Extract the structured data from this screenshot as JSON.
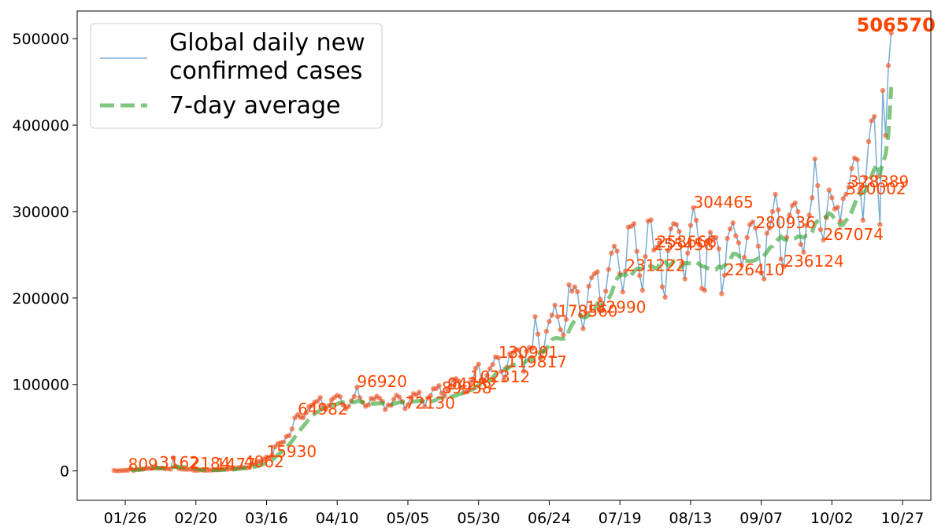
{
  "chart_data": {
    "type": "line",
    "x": [
      "01/22",
      "01/23",
      "01/24",
      "01/25",
      "01/26",
      "01/27",
      "01/28",
      "01/29",
      "01/30",
      "01/31",
      "02/01",
      "02/02",
      "02/03",
      "02/04",
      "02/05",
      "02/06",
      "02/07",
      "02/08",
      "02/09",
      "02/10",
      "02/11",
      "02/12",
      "02/13",
      "02/14",
      "02/15",
      "02/16",
      "02/17",
      "02/18",
      "02/19",
      "02/20",
      "02/21",
      "02/22",
      "02/23",
      "02/24",
      "02/25",
      "02/26",
      "02/27",
      "02/28",
      "02/29",
      "03/01",
      "03/02",
      "03/03",
      "03/04",
      "03/05",
      "03/06",
      "03/07",
      "03/08",
      "03/09",
      "03/10",
      "03/11",
      "03/12",
      "03/13",
      "03/14",
      "03/15",
      "03/16",
      "03/17",
      "03/18",
      "03/19",
      "03/20",
      "03/21",
      "03/22",
      "03/23",
      "03/24",
      "03/25",
      "03/26",
      "03/27",
      "03/28",
      "03/29",
      "03/30",
      "03/31",
      "04/01",
      "04/02",
      "04/03",
      "04/04",
      "04/05",
      "04/06",
      "04/07",
      "04/08",
      "04/09",
      "04/10",
      "04/11",
      "04/12",
      "04/13",
      "04/14",
      "04/15",
      "04/16",
      "04/17",
      "04/18",
      "04/19",
      "04/20",
      "04/21",
      "04/22",
      "04/23",
      "04/24",
      "04/25",
      "04/26",
      "04/27",
      "04/28",
      "04/29",
      "04/30",
      "05/01",
      "05/02",
      "05/03",
      "05/04",
      "05/05",
      "05/06",
      "05/07",
      "05/08",
      "05/09",
      "05/10",
      "05/11",
      "05/12",
      "05/13",
      "05/14",
      "05/15",
      "05/16",
      "05/17",
      "05/18",
      "05/19",
      "05/20",
      "05/21",
      "05/22",
      "05/23",
      "05/24",
      "05/25",
      "05/26",
      "05/27",
      "05/28",
      "05/29",
      "05/30",
      "05/31",
      "06/01",
      "06/02",
      "06/03",
      "06/04",
      "06/05",
      "06/06",
      "06/07",
      "06/08",
      "06/09",
      "06/10",
      "06/11",
      "06/12",
      "06/13",
      "06/14",
      "06/15",
      "06/16",
      "06/17",
      "06/18",
      "06/19",
      "06/20",
      "06/21",
      "06/22",
      "06/23",
      "06/24",
      "06/25",
      "06/26",
      "06/27",
      "06/28",
      "06/29",
      "06/30",
      "07/01",
      "07/02",
      "07/03",
      "07/04",
      "07/05",
      "07/06",
      "07/07",
      "07/08",
      "07/09",
      "07/10",
      "07/11",
      "07/12",
      "07/13",
      "07/14",
      "07/15",
      "07/16",
      "07/17",
      "07/18",
      "07/19",
      "07/20",
      "07/21",
      "07/22",
      "07/23",
      "07/24",
      "07/25",
      "07/26",
      "07/27",
      "07/28",
      "07/29",
      "07/30",
      "07/31",
      "08/01",
      "08/02",
      "08/03",
      "08/04",
      "08/05",
      "08/06",
      "08/07",
      "08/08",
      "08/09",
      "08/10",
      "08/11",
      "08/12",
      "08/13",
      "08/14",
      "08/15",
      "08/16",
      "08/17",
      "08/18",
      "08/19",
      "08/20",
      "08/21",
      "08/22",
      "08/23",
      "08/24",
      "08/25",
      "08/26",
      "08/27",
      "08/28",
      "08/29",
      "08/30",
      "08/31",
      "09/01",
      "09/02",
      "09/03",
      "09/04",
      "09/05",
      "09/06",
      "09/07",
      "09/08",
      "09/09",
      "09/10",
      "09/11",
      "09/12",
      "09/13",
      "09/14",
      "09/15",
      "09/16",
      "09/17",
      "09/18",
      "09/19",
      "09/20",
      "09/21",
      "09/22",
      "09/23",
      "09/24",
      "09/25",
      "09/26",
      "09/27",
      "09/28",
      "09/29",
      "09/30",
      "10/01",
      "10/02",
      "10/03",
      "10/04",
      "10/05",
      "10/06",
      "10/07",
      "10/08",
      "10/09",
      "10/10",
      "10/11",
      "10/12",
      "10/13",
      "10/14",
      "10/15",
      "10/16",
      "10/17",
      "10/18",
      "10/19",
      "10/20",
      "10/21",
      "10/22",
      "10/23"
    ],
    "series": [
      {
        "name": "Global daily new\nconfirmed cases",
        "color": "#1f77b4",
        "marker_color": "#f4511e",
        "values": [
          548,
          100,
          287,
          493,
          684,
          809,
          2651,
          588,
          2068,
          1693,
          2111,
          2604,
          2829,
          3237,
          3872,
          3727,
          3162,
          3418,
          2608,
          2545,
          2020,
          15153,
          5087,
          2653,
          2110,
          2052,
          1886,
          2184,
          908,
          574,
          971,
          1222,
          611,
          826,
          919,
          1024,
          1477,
          1426,
          1929,
          2390,
          1853,
          2534,
          2314,
          2787,
          3977,
          3957,
          4062,
          3713,
          4451,
          7505,
          8008,
          10855,
          11120,
          13781,
          15930,
          14952,
          18108,
          27990,
          31400,
          32500,
          33400,
          39800,
          40800,
          48500,
          61500,
          64982,
          62000,
          61700,
          67100,
          74500,
          76000,
          79400,
          80700,
          85000,
          74800,
          71500,
          75500,
          82200,
          84900,
          87400,
          85900,
          76400,
          71800,
          74600,
          81200,
          86100,
          96920,
          84700,
          79300,
          74800,
          76500,
          83900,
          83000,
          86400,
          84000,
          80500,
          71000,
          76300,
          75900,
          83000,
          87500,
          85200,
          80400,
          72130,
          76700,
          85100,
          89300,
          88000,
          91000,
          80800,
          74500,
          84500,
          87100,
          95100,
          95300,
          98600,
          89958,
          86600,
          94282,
          98000,
          105200,
          106800,
          103800,
          96200,
          90800,
          91600,
          102312,
          106400,
          118900,
          123600,
          104600,
          103500,
          110500,
          118300,
          123100,
          132000,
          130901,
          115000,
          106300,
          119817,
          135600,
          136600,
          139400,
          140200,
          132400,
          115300,
          138300,
          142700,
          141900,
          178500,
          158300,
          130800,
          138300,
          161500,
          172800,
          180200,
          191700,
          178560,
          163400,
          157300,
          175400,
          215300,
          207900,
          212900,
          207400,
          179700,
          164500,
          182990,
          213700,
          223600,
          228000,
          230400,
          198700,
          186000,
          208000,
          233100,
          252000,
          260000,
          254400,
          228000,
          207000,
          231222,
          282000,
          283000,
          286000,
          254000,
          226000,
          209000,
          248000,
          289000,
          290500,
          255458,
          258666,
          264000,
          213000,
          201000,
          255000,
          280000,
          286000,
          285000,
          277000,
          240000,
          222000,
          252000,
          284000,
          304465,
          290000,
          262000,
          211000,
          209000,
          266000,
          276000,
          268000,
          270000,
          257000,
          205000,
          226410,
          269000,
          280000,
          287000,
          272000,
          264000,
          238000,
          247000,
          270000,
          285000,
          288000,
          280936,
          260000,
          229000,
          222000,
          275000,
          281000,
          300000,
          320000,
          302000,
          245000,
          236124,
          270000,
          296000,
          307000,
          310000,
          300000,
          262000,
          253000,
          284000,
          296000,
          316000,
          361000,
          330000,
          279000,
          267074,
          293000,
          325000,
          316000,
          303000,
          305000,
          289000,
          315000,
          320002,
          328389,
          350000,
          362000,
          360000,
          326000,
          290000,
          339000,
          381000,
          405000,
          410000,
          340000,
          285000,
          440000,
          388000,
          469000,
          506570
        ]
      },
      {
        "name": "7-day average",
        "color": "#2ca02c",
        "dashed": true,
        "values": [
          null,
          null,
          null,
          null,
          null,
          null,
          800,
          1100,
          1200,
          1400,
          1700,
          2000,
          2300,
          2600,
          2900,
          3100,
          3200,
          3200,
          3100,
          3000,
          2800,
          4500,
          4800,
          4700,
          4600,
          4500,
          4300,
          4100,
          3600,
          3100,
          1700,
          1300,
          1200,
          1100,
          1000,
          900,
          950,
          1000,
          1100,
          1200,
          1300,
          1500,
          1700,
          1900,
          2200,
          2700,
          3000,
          3300,
          3600,
          4200,
          4800,
          5800,
          6800,
          8000,
          9300,
          10700,
          12400,
          15500,
          18500,
          21300,
          23900,
          27400,
          30500,
          34500,
          39100,
          43600,
          47800,
          51800,
          55600,
          59700,
          63800,
          66100,
          68000,
          70200,
          71800,
          73200,
          74500,
          75400,
          76200,
          77400,
          78900,
          79500,
          79100,
          78800,
          79700,
          79200,
          80800,
          80500,
          79500,
          78600,
          78100,
          77900,
          77600,
          78000,
          78300,
          78000,
          77200,
          76200,
          76700,
          77700,
          78500,
          79300,
          79200,
          78700,
          78500,
          79000,
          80500,
          80700,
          81200,
          80400,
          80200,
          80100,
          80000,
          81000,
          82400,
          84500,
          84200,
          83000,
          84200,
          85700,
          86600,
          87000,
          88700,
          89500,
          91000,
          92000,
          93300,
          94500,
          96700,
          99500,
          100400,
          101100,
          102400,
          104700,
          108000,
          112100,
          115600,
          117500,
          117800,
          118000,
          120400,
          122200,
          123300,
          124300,
          124600,
          124600,
          127500,
          129000,
          128300,
          134400,
          135700,
          138000,
          138500,
          141600,
          145400,
          151700,
          153700,
          153800,
          152800,
          152900,
          153800,
          162400,
          168900,
          173800,
          178000,
          180500,
          177600,
          177700,
          180300,
          182500,
          186000,
          193300,
          191400,
          192000,
          195200,
          199200,
          205400,
          215300,
          222600,
          226100,
          227200,
          227200,
          223100,
          226400,
          230800,
          233900,
          233900,
          234200,
          234000,
          236100,
          237100,
          235400,
          233800,
          238800,
          242300,
          242300,
          237600,
          238400,
          242000,
          236400,
          235600,
          236000,
          240300,
          240400,
          240000,
          239500,
          241300,
          239300,
          236700,
          236300,
          234400,
          233700,
          233500,
          233000,
          236400,
          235200,
          238000,
          240000,
          244000,
          251000,
          251000,
          249000,
          245000,
          243000,
          243000,
          243000,
          243000,
          244000,
          246000,
          245000,
          249000,
          253000,
          258000,
          260000,
          264000,
          268000,
          271000,
          268000,
          267000,
          267000,
          268000,
          269000,
          271000,
          271000,
          270000,
          272000,
          272000,
          276000,
          286000,
          289000,
          290000,
          293000,
          294000,
          298000,
          296000,
          291000,
          290000,
          284000,
          285000,
          290000,
          292000,
          300000,
          308000,
          318000,
          320000,
          322000,
          324000,
          334000,
          341000,
          349000,
          355000,
          344000,
          356000,
          366000,
          390000,
          444000
        ]
      }
    ],
    "annotations": [
      809,
      3162,
      2184,
      1477,
      4062,
      15930,
      64982,
      96920,
      72130,
      89958,
      94282,
      102312,
      130901,
      119817,
      178560,
      182990,
      231222,
      255458,
      258666,
      304465,
      226410,
      280936,
      236124,
      267074,
      320002,
      328389,
      506570
    ],
    "annotation_color": "#ff4500",
    "xlim": [
      "01/09",
      "11/06"
    ],
    "xticks": [
      "01/26",
      "02/20",
      "03/16",
      "04/10",
      "05/05",
      "05/30",
      "06/24",
      "07/19",
      "08/13",
      "09/07",
      "10/02",
      "10/27"
    ],
    "ylim": [
      -34000,
      532000
    ],
    "yticks": [
      0,
      100000,
      200000,
      300000,
      400000,
      500000
    ],
    "legend": "upper left"
  }
}
